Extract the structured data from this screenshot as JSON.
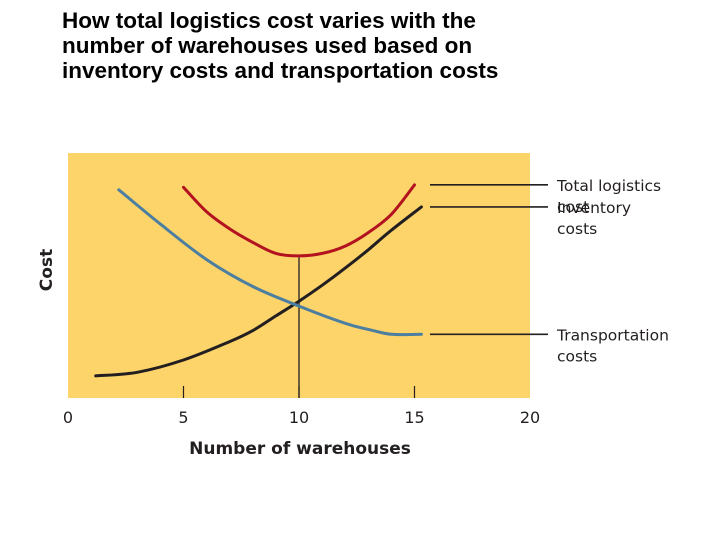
{
  "title_lines": [
    "How total logistics cost varies with the",
    "number of warehouses used based on",
    "inventory costs and transportation costs"
  ],
  "chart_data": {
    "type": "line",
    "xlabel": "Number of warehouses",
    "ylabel": "Cost",
    "xlim": [
      0,
      20
    ],
    "x_ticks": [
      "0",
      "5",
      "10",
      "15",
      "20"
    ],
    "y_ticks": [],
    "grid": false,
    "background_color": "#fdd46a",
    "series": [
      {
        "name": "Total logistics cost",
        "label_lines": [
          "Total logistics",
          "cost"
        ],
        "color": "#b3121f",
        "x": [
          5,
          6,
          7,
          8,
          9,
          10,
          11,
          12,
          13,
          14,
          15
        ],
        "y": [
          8.6,
          7.6,
          6.9,
          6.35,
          5.9,
          5.8,
          5.9,
          6.2,
          6.75,
          7.5,
          8.7
        ]
      },
      {
        "name": "Inventory costs",
        "label_lines": [
          "Inventory",
          "costs"
        ],
        "color": "#231f20",
        "x": [
          1.2,
          3,
          5,
          7,
          8,
          9,
          10,
          11,
          12,
          13,
          14,
          15.3
        ],
        "y": [
          0.9,
          1.05,
          1.55,
          2.3,
          2.75,
          3.35,
          3.95,
          4.6,
          5.3,
          6.05,
          6.85,
          7.8
        ]
      },
      {
        "name": "Transportation costs",
        "label_lines": [
          "Transportation",
          "costs"
        ],
        "color": "#4c7ea0",
        "x": [
          2.2,
          4,
          6,
          8,
          10,
          12,
          13,
          14,
          15.3
        ],
        "y": [
          8.5,
          7.1,
          5.65,
          4.55,
          3.75,
          3.05,
          2.8,
          2.6,
          2.6
        ]
      }
    ],
    "annotations": [
      {
        "type": "vertical_line",
        "x": 10,
        "from_y": 0,
        "to_y": 5.8,
        "color": "#231f20"
      }
    ],
    "legend": "right, callout lines to curve ends"
  }
}
